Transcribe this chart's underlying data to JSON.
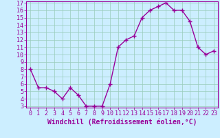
{
  "x": [
    0,
    1,
    2,
    3,
    4,
    5,
    6,
    7,
    8,
    9,
    10,
    11,
    12,
    13,
    14,
    15,
    16,
    17,
    18,
    19,
    20,
    21,
    22,
    23
  ],
  "y": [
    8,
    5.5,
    5.5,
    5,
    4,
    5.5,
    4.5,
    3,
    3,
    3,
    6,
    11,
    12,
    12.5,
    15,
    16,
    16.5,
    17,
    16,
    16,
    14.5,
    11,
    10,
    10.5
  ],
  "line_color": "#990099",
  "marker": "+",
  "marker_size": 4,
  "bg_color": "#cceeff",
  "grid_color": "#99ccbb",
  "xlabel": "Windchill (Refroidissement éolien,°C)",
  "ylim": [
    3,
    17
  ],
  "xlim": [
    -0.5,
    23.5
  ],
  "yticks": [
    3,
    4,
    5,
    6,
    7,
    8,
    9,
    10,
    11,
    12,
    13,
    14,
    15,
    16,
    17
  ],
  "xticks": [
    0,
    1,
    2,
    3,
    4,
    5,
    6,
    7,
    8,
    9,
    10,
    11,
    12,
    13,
    14,
    15,
    16,
    17,
    18,
    19,
    20,
    21,
    22,
    23
  ],
  "tick_fontsize": 6,
  "xlabel_fontsize": 7,
  "line_width": 1.0
}
